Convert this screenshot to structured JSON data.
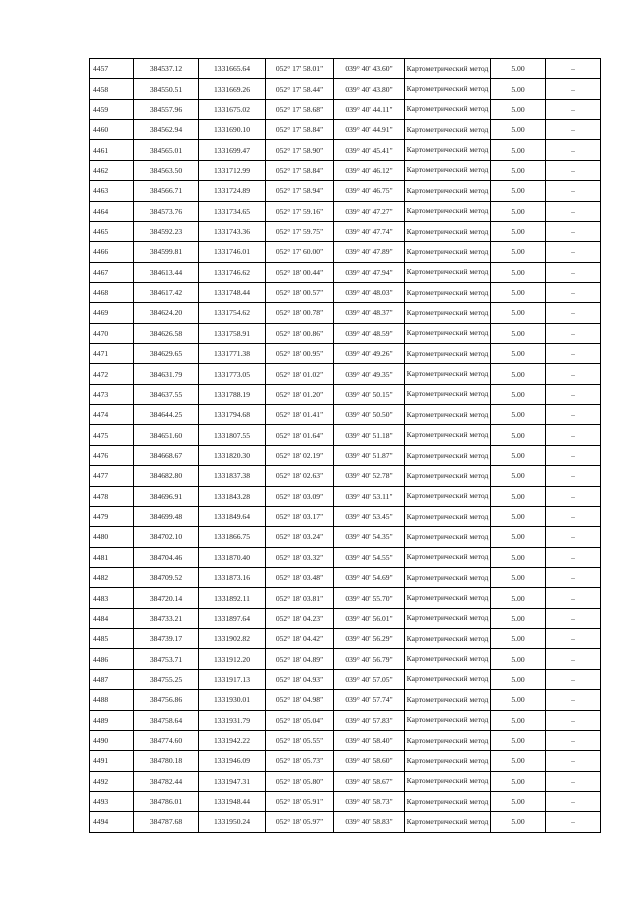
{
  "table": {
    "rows": [
      [
        "4457",
        "384537.12",
        "1331665.64",
        "052° 17' 58.01\"",
        "039° 40' 43.60\"",
        "Картометрический метод",
        "5.00",
        "–"
      ],
      [
        "4458",
        "384550.51",
        "1331669.26",
        "052° 17' 58.44\"",
        "039° 40' 43.80\"",
        "Картометрический метод",
        "5.00",
        "–"
      ],
      [
        "4459",
        "384557.96",
        "1331675.02",
        "052° 17' 58.68\"",
        "039° 40' 44.11\"",
        "Картометрический метод",
        "5.00",
        "–"
      ],
      [
        "4460",
        "384562.94",
        "1331690.10",
        "052° 17' 58.84\"",
        "039° 40' 44.91\"",
        "Картометрический метод",
        "5.00",
        "–"
      ],
      [
        "4461",
        "384565.01",
        "1331699.47",
        "052° 17' 58.90\"",
        "039° 40' 45.41\"",
        "Картометрический метод",
        "5.00",
        "–"
      ],
      [
        "4462",
        "384563.50",
        "1331712.99",
        "052° 17' 58.84\"",
        "039° 40' 46.12\"",
        "Картометрический метод",
        "5.00",
        "–"
      ],
      [
        "4463",
        "384566.71",
        "1331724.89",
        "052° 17' 58.94\"",
        "039° 40' 46.75\"",
        "Картометрический метод",
        "5.00",
        "–"
      ],
      [
        "4464",
        "384573.76",
        "1331734.65",
        "052° 17' 59.16\"",
        "039° 40' 47.27\"",
        "Картометрический метод",
        "5.00",
        "–"
      ],
      [
        "4465",
        "384592.23",
        "1331743.36",
        "052° 17' 59.75\"",
        "039° 40' 47.74\"",
        "Картометрический метод",
        "5.00",
        "–"
      ],
      [
        "4466",
        "384599.81",
        "1331746.01",
        "052° 17' 60.00\"",
        "039° 40' 47.89\"",
        "Картометрический метод",
        "5.00",
        "–"
      ],
      [
        "4467",
        "384613.44",
        "1331746.62",
        "052° 18' 00.44\"",
        "039° 40' 47.94\"",
        "Картометрический метод",
        "5.00",
        "–"
      ],
      [
        "4468",
        "384617.42",
        "1331748.44",
        "052° 18' 00.57\"",
        "039° 40' 48.03\"",
        "Картометрический метод",
        "5.00",
        "–"
      ],
      [
        "4469",
        "384624.20",
        "1331754.62",
        "052° 18' 00.78\"",
        "039° 40' 48.37\"",
        "Картометрический метод",
        "5.00",
        "–"
      ],
      [
        "4470",
        "384626.58",
        "1331758.91",
        "052° 18' 00.86\"",
        "039° 40' 48.59\"",
        "Картометрический метод",
        "5.00",
        "–"
      ],
      [
        "4471",
        "384629.65",
        "1331771.38",
        "052° 18' 00.95\"",
        "039° 40' 49.26\"",
        "Картометрический метод",
        "5.00",
        "–"
      ],
      [
        "4472",
        "384631.79",
        "1331773.05",
        "052° 18' 01.02\"",
        "039° 40' 49.35\"",
        "Картометрический метод",
        "5.00",
        "–"
      ],
      [
        "4473",
        "384637.55",
        "1331788.19",
        "052° 18' 01.20\"",
        "039° 40' 50.15\"",
        "Картометрический метод",
        "5.00",
        "–"
      ],
      [
        "4474",
        "384644.25",
        "1331794.68",
        "052° 18' 01.41\"",
        "039° 40' 50.50\"",
        "Картометрический метод",
        "5.00",
        "–"
      ],
      [
        "4475",
        "384651.60",
        "1331807.55",
        "052° 18' 01.64\"",
        "039° 40' 51.18\"",
        "Картометрический метод",
        "5.00",
        "–"
      ],
      [
        "4476",
        "384668.67",
        "1331820.30",
        "052° 18' 02.19\"",
        "039° 40' 51.87\"",
        "Картометрический метод",
        "5.00",
        "–"
      ],
      [
        "4477",
        "384682.80",
        "1331837.38",
        "052° 18' 02.63\"",
        "039° 40' 52.78\"",
        "Картометрический метод",
        "5.00",
        "–"
      ],
      [
        "4478",
        "384696.91",
        "1331843.28",
        "052° 18' 03.09\"",
        "039° 40' 53.11\"",
        "Картометрический метод",
        "5.00",
        "–"
      ],
      [
        "4479",
        "384699.48",
        "1331849.64",
        "052° 18' 03.17\"",
        "039° 40' 53.45\"",
        "Картометрический метод",
        "5.00",
        "–"
      ],
      [
        "4480",
        "384702.10",
        "1331866.75",
        "052° 18' 03.24\"",
        "039° 40' 54.35\"",
        "Картометрический метод",
        "5.00",
        "–"
      ],
      [
        "4481",
        "384704.46",
        "1331870.40",
        "052° 18' 03.32\"",
        "039° 40' 54.55\"",
        "Картометрический метод",
        "5.00",
        "–"
      ],
      [
        "4482",
        "384709.52",
        "1331873.16",
        "052° 18' 03.48\"",
        "039° 40' 54.69\"",
        "Картометрический метод",
        "5.00",
        "–"
      ],
      [
        "4483",
        "384720.14",
        "1331892.11",
        "052° 18' 03.81\"",
        "039° 40' 55.70\"",
        "Картометрический метод",
        "5.00",
        "–"
      ],
      [
        "4484",
        "384733.21",
        "1331897.64",
        "052° 18' 04.23\"",
        "039° 40' 56.01\"",
        "Картометрический метод",
        "5.00",
        "–"
      ],
      [
        "4485",
        "384739.17",
        "1331902.82",
        "052° 18' 04.42\"",
        "039° 40' 56.29\"",
        "Картометрический метод",
        "5.00",
        "–"
      ],
      [
        "4486",
        "384753.71",
        "1331912.20",
        "052° 18' 04.89\"",
        "039° 40' 56.79\"",
        "Картометрический метод",
        "5.00",
        "–"
      ],
      [
        "4487",
        "384755.25",
        "1331917.13",
        "052° 18' 04.93\"",
        "039° 40' 57.05\"",
        "Картометрический метод",
        "5.00",
        "–"
      ],
      [
        "4488",
        "384756.86",
        "1331930.01",
        "052° 18' 04.98\"",
        "039° 40' 57.74\"",
        "Картометрический метод",
        "5.00",
        "–"
      ],
      [
        "4489",
        "384758.64",
        "1331931.79",
        "052° 18' 05.04\"",
        "039° 40' 57.83\"",
        "Картометрический метод",
        "5.00",
        "–"
      ],
      [
        "4490",
        "384774.60",
        "1331942.22",
        "052° 18' 05.55\"",
        "039° 40' 58.40\"",
        "Картометрический метод",
        "5.00",
        "–"
      ],
      [
        "4491",
        "384780.18",
        "1331946.09",
        "052° 18' 05.73\"",
        "039° 40' 58.60\"",
        "Картометрический метод",
        "5.00",
        "–"
      ],
      [
        "4492",
        "384782.44",
        "1331947.31",
        "052° 18' 05.80\"",
        "039° 40' 58.67\"",
        "Картометрический метод",
        "5.00",
        "–"
      ],
      [
        "4493",
        "384786.01",
        "1331948.44",
        "052° 18' 05.91\"",
        "039° 40' 58.73\"",
        "Картометрический метод",
        "5.00",
        "–"
      ],
      [
        "4494",
        "384787.68",
        "1331950.24",
        "052° 18' 05.97\"",
        "039° 40' 58.83\"",
        "Картометрический метод",
        "5.00",
        "–"
      ]
    ]
  }
}
